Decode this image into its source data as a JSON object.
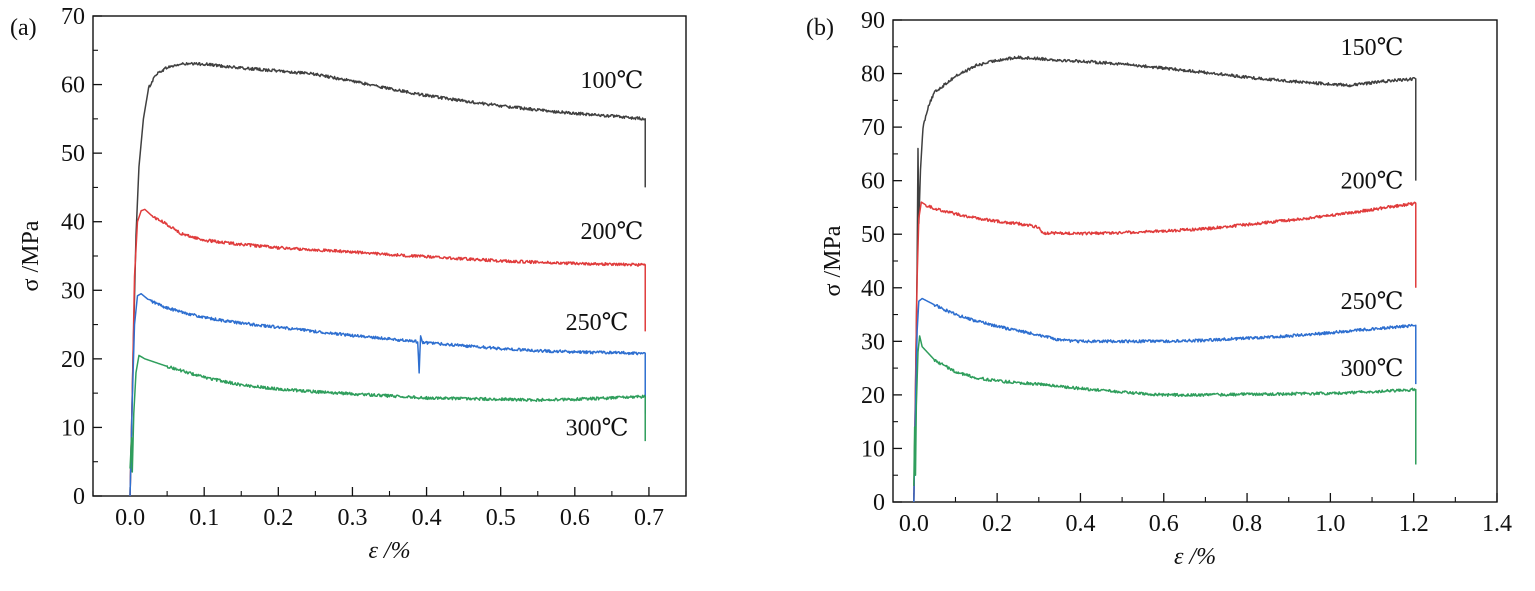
{
  "chart_data": [
    {
      "type": "line",
      "panel_label": "(a)",
      "xlabel": "ε /%",
      "ylabel": "σ /MPa",
      "xlim": [
        -0.05,
        0.75
      ],
      "ylim": [
        0,
        70
      ],
      "xticks": [
        0.0,
        0.1,
        0.2,
        0.3,
        0.4,
        0.5,
        0.6,
        0.7
      ],
      "xtick_labels": [
        "0.0",
        "0.1",
        "0.2",
        "0.3",
        "0.4",
        "0.5",
        "0.6",
        "0.7"
      ],
      "yticks": [
        0,
        10,
        20,
        30,
        40,
        50,
        60,
        70
      ],
      "ytick_labels": [
        "0",
        "10",
        "20",
        "30",
        "40",
        "50",
        "60",
        "70"
      ],
      "grid": false,
      "series": [
        {
          "name": "100℃",
          "color": "#404040",
          "label_at": [
            0.65,
            59.5
          ],
          "points": [
            [
              0.0,
              0
            ],
            [
              0.004,
              20
            ],
            [
              0.008,
              38
            ],
            [
              0.012,
              48
            ],
            [
              0.018,
              55
            ],
            [
              0.025,
              59.5
            ],
            [
              0.035,
              61.5
            ],
            [
              0.05,
              62.5
            ],
            [
              0.07,
              63.0
            ],
            [
              0.1,
              63.0
            ],
            [
              0.15,
              62.4
            ],
            [
              0.2,
              62.0
            ],
            [
              0.25,
              61.5
            ],
            [
              0.3,
              60.5
            ],
            [
              0.35,
              59.4
            ],
            [
              0.4,
              58.4
            ],
            [
              0.45,
              57.6
            ],
            [
              0.5,
              56.9
            ],
            [
              0.55,
              56.3
            ],
            [
              0.6,
              55.8
            ],
            [
              0.65,
              55.4
            ],
            [
              0.695,
              55.0
            ],
            [
              0.695,
              45.0
            ]
          ]
        },
        {
          "name": "200℃",
          "color": "#e03c3c",
          "label_at": [
            0.65,
            37.5
          ],
          "points": [
            [
              0.0,
              0
            ],
            [
              0.003,
              15
            ],
            [
              0.006,
              32
            ],
            [
              0.01,
              40
            ],
            [
              0.015,
              41.6
            ],
            [
              0.02,
              41.8
            ],
            [
              0.03,
              40.8
            ],
            [
              0.05,
              39.6
            ],
            [
              0.07,
              38.2
            ],
            [
              0.1,
              37.3
            ],
            [
              0.15,
              36.7
            ],
            [
              0.2,
              36.2
            ],
            [
              0.25,
              35.9
            ],
            [
              0.3,
              35.6
            ],
            [
              0.35,
              35.2
            ],
            [
              0.4,
              34.9
            ],
            [
              0.45,
              34.6
            ],
            [
              0.5,
              34.3
            ],
            [
              0.55,
              34.1
            ],
            [
              0.6,
              33.9
            ],
            [
              0.65,
              33.8
            ],
            [
              0.695,
              33.7
            ],
            [
              0.695,
              24.0
            ]
          ]
        },
        {
          "name": "250℃",
          "color": "#2e6fd0",
          "label_at": [
            0.63,
            24.2
          ],
          "points": [
            [
              0.0,
              0
            ],
            [
              0.003,
              14
            ],
            [
              0.006,
              25
            ],
            [
              0.01,
              29.2
            ],
            [
              0.015,
              29.5
            ],
            [
              0.025,
              28.6
            ],
            [
              0.05,
              27.4
            ],
            [
              0.1,
              26.0
            ],
            [
              0.15,
              25.2
            ],
            [
              0.2,
              24.6
            ],
            [
              0.25,
              24.0
            ],
            [
              0.3,
              23.4
            ],
            [
              0.35,
              22.9
            ],
            [
              0.388,
              22.5
            ],
            [
              0.39,
              18.0
            ],
            [
              0.392,
              23.5
            ],
            [
              0.395,
              22.4
            ],
            [
              0.45,
              21.9
            ],
            [
              0.5,
              21.5
            ],
            [
              0.55,
              21.2
            ],
            [
              0.6,
              21.0
            ],
            [
              0.65,
              20.9
            ],
            [
              0.695,
              20.8
            ],
            [
              0.695,
              12.0
            ]
          ]
        },
        {
          "name": "300℃",
          "color": "#2f9e5c",
          "label_at": [
            0.63,
            8.8
          ],
          "points": [
            [
              0.0,
              4.0
            ],
            [
              0.002,
              8.5
            ],
            [
              0.003,
              3.5
            ],
            [
              0.005,
              12
            ],
            [
              0.008,
              18
            ],
            [
              0.012,
              20.5
            ],
            [
              0.02,
              20.0
            ],
            [
              0.05,
              18.9
            ],
            [
              0.1,
              17.3
            ],
            [
              0.15,
              16.2
            ],
            [
              0.2,
              15.6
            ],
            [
              0.25,
              15.2
            ],
            [
              0.3,
              14.9
            ],
            [
              0.35,
              14.6
            ],
            [
              0.4,
              14.3
            ],
            [
              0.45,
              14.2
            ],
            [
              0.5,
              14.1
            ],
            [
              0.55,
              14.0
            ],
            [
              0.6,
              14.1
            ],
            [
              0.65,
              14.3
            ],
            [
              0.695,
              14.5
            ],
            [
              0.695,
              8.0
            ]
          ]
        }
      ]
    },
    {
      "type": "line",
      "panel_label": "(b)",
      "xlabel": "ε /%",
      "ylabel": "σ /MPa",
      "xlim": [
        -0.05,
        1.4
      ],
      "ylim": [
        0,
        90
      ],
      "xticks": [
        0.0,
        0.2,
        0.4,
        0.6,
        0.8,
        1.0,
        1.2,
        1.4
      ],
      "xtick_labels": [
        "0.0",
        "0.2",
        "0.4",
        "0.6",
        "0.8",
        "1.0",
        "1.2",
        "1.4"
      ],
      "yticks": [
        0,
        10,
        20,
        30,
        40,
        50,
        60,
        70,
        80,
        90
      ],
      "ytick_labels": [
        "0",
        "10",
        "20",
        "30",
        "40",
        "50",
        "60",
        "70",
        "80",
        "90"
      ],
      "grid": false,
      "series": [
        {
          "name": "150℃",
          "color": "#404040",
          "label_at": [
            1.1,
            83.5
          ],
          "points": [
            [
              0.0,
              0
            ],
            [
              0.004,
              20
            ],
            [
              0.008,
              45
            ],
            [
              0.01,
              66
            ],
            [
              0.012,
              52
            ],
            [
              0.016,
              62
            ],
            [
              0.022,
              70
            ],
            [
              0.035,
              74
            ],
            [
              0.05,
              76.5
            ],
            [
              0.1,
              79.5
            ],
            [
              0.15,
              81.5
            ],
            [
              0.2,
              82.5
            ],
            [
              0.25,
              83.0
            ],
            [
              0.3,
              82.8
            ],
            [
              0.35,
              82.5
            ],
            [
              0.4,
              82.3
            ],
            [
              0.5,
              81.8
            ],
            [
              0.6,
              81.0
            ],
            [
              0.7,
              80.2
            ],
            [
              0.8,
              79.3
            ],
            [
              0.9,
              78.6
            ],
            [
              1.0,
              78.0
            ],
            [
              1.05,
              77.8
            ],
            [
              1.1,
              78.3
            ],
            [
              1.15,
              78.7
            ],
            [
              1.205,
              79.0
            ],
            [
              1.205,
              60.0
            ]
          ]
        },
        {
          "name": "200℃",
          "color": "#e03c3c",
          "label_at": [
            1.1,
            58.5
          ],
          "points": [
            [
              0.0,
              0
            ],
            [
              0.004,
              22
            ],
            [
              0.008,
              42
            ],
            [
              0.012,
              53
            ],
            [
              0.018,
              56.0
            ],
            [
              0.03,
              55.4
            ],
            [
              0.05,
              54.8
            ],
            [
              0.1,
              53.8
            ],
            [
              0.15,
              53.0
            ],
            [
              0.2,
              52.4
            ],
            [
              0.25,
              52.0
            ],
            [
              0.3,
              51.3
            ],
            [
              0.31,
              50.2
            ],
            [
              0.35,
              50.2
            ],
            [
              0.4,
              50.1
            ],
            [
              0.5,
              50.3
            ],
            [
              0.6,
              50.6
            ],
            [
              0.7,
              51.0
            ],
            [
              0.8,
              51.8
            ],
            [
              0.9,
              52.6
            ],
            [
              1.0,
              53.5
            ],
            [
              1.1,
              54.6
            ],
            [
              1.205,
              55.8
            ],
            [
              1.205,
              40.0
            ]
          ]
        },
        {
          "name": "250℃",
          "color": "#2e6fd0",
          "label_at": [
            1.1,
            36.0
          ],
          "points": [
            [
              0.0,
              0
            ],
            [
              0.004,
              18
            ],
            [
              0.008,
              32
            ],
            [
              0.012,
              37.5
            ],
            [
              0.02,
              38.0
            ],
            [
              0.05,
              36.8
            ],
            [
              0.1,
              35.0
            ],
            [
              0.15,
              33.8
            ],
            [
              0.2,
              32.8
            ],
            [
              0.25,
              32.0
            ],
            [
              0.3,
              31.2
            ],
            [
              0.35,
              30.2
            ],
            [
              0.4,
              30.0
            ],
            [
              0.5,
              30.0
            ],
            [
              0.6,
              30.0
            ],
            [
              0.7,
              30.2
            ],
            [
              0.8,
              30.6
            ],
            [
              0.9,
              31.0
            ],
            [
              1.0,
              31.6
            ],
            [
              1.1,
              32.3
            ],
            [
              1.205,
              33.0
            ],
            [
              1.205,
              22.0
            ]
          ]
        },
        {
          "name": "300℃",
          "color": "#2f9e5c",
          "label_at": [
            1.1,
            23.5
          ],
          "points": [
            [
              0.0,
              3.0
            ],
            [
              0.002,
              14
            ],
            [
              0.004,
              5
            ],
            [
              0.006,
              18
            ],
            [
              0.01,
              28
            ],
            [
              0.014,
              31
            ],
            [
              0.02,
              29.0
            ],
            [
              0.05,
              26.5
            ],
            [
              0.1,
              24.3
            ],
            [
              0.15,
              23.2
            ],
            [
              0.2,
              22.6
            ],
            [
              0.3,
              22.0
            ],
            [
              0.4,
              21.2
            ],
            [
              0.5,
              20.5
            ],
            [
              0.6,
              20.0
            ],
            [
              0.7,
              20.0
            ],
            [
              0.8,
              20.1
            ],
            [
              0.9,
              20.2
            ],
            [
              1.0,
              20.3
            ],
            [
              1.1,
              20.6
            ],
            [
              1.205,
              21.0
            ],
            [
              1.205,
              7.0
            ]
          ]
        }
      ]
    }
  ]
}
